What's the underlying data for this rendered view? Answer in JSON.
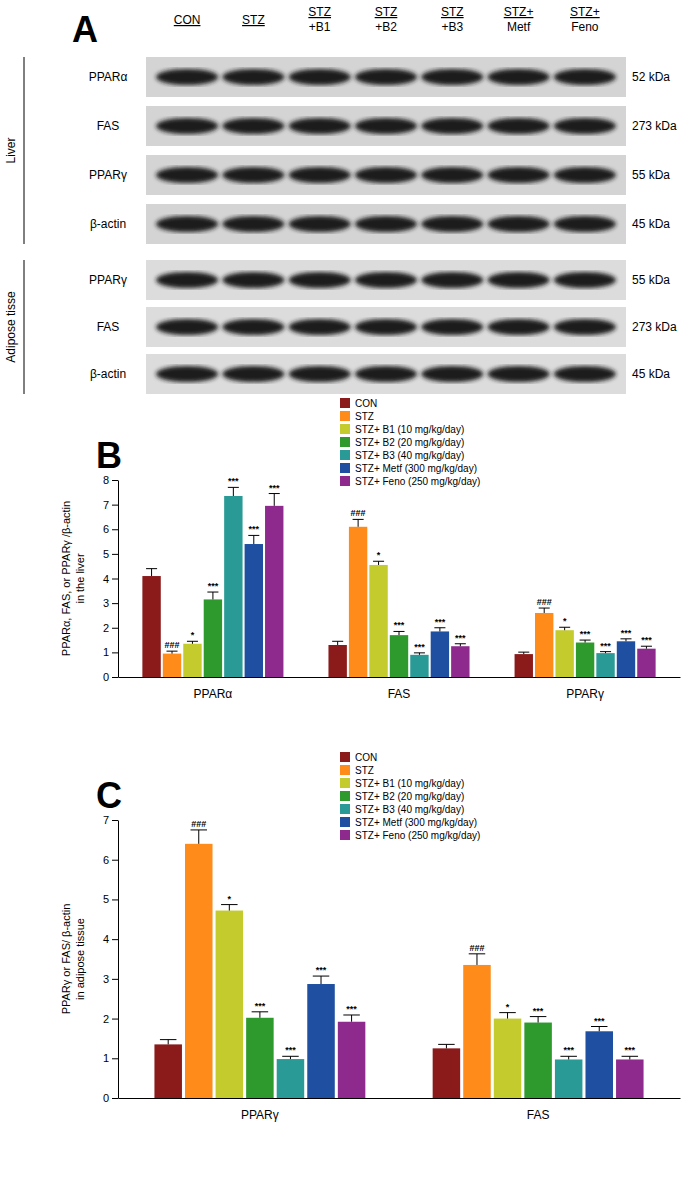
{
  "panel_a": {
    "label": "A",
    "columns": [
      [
        "CON"
      ],
      [
        "STZ"
      ],
      [
        "STZ",
        "+B1"
      ],
      [
        "STZ",
        "+B2"
      ],
      [
        "STZ",
        "+B3"
      ],
      [
        "STZ+",
        "Metf"
      ],
      [
        "STZ+",
        "Feno"
      ]
    ],
    "groups": [
      {
        "name": "Liver",
        "rows": [
          {
            "protein": "PPARα",
            "size": "52 kDa"
          },
          {
            "protein": "FAS",
            "size": "273 kDa"
          },
          {
            "protein": "PPARγ",
            "size": "55 kDa"
          },
          {
            "protein": "β-actin",
            "size": "45 kDa"
          }
        ]
      },
      {
        "name": "Adipose tisse",
        "rows": [
          {
            "protein": "PPARγ",
            "size": "55 kDa"
          },
          {
            "protein": "FAS",
            "size": "273 kDa"
          },
          {
            "protein": "β-actin",
            "size": "45 kDa"
          }
        ]
      }
    ]
  },
  "chart_data": [
    {
      "type": "bar",
      "panel_label": "B",
      "ylabel": [
        "PPARα, FAS, or PPARγ /β-actin",
        "in the liver"
      ],
      "categories": [
        "PPARα",
        "FAS",
        "PPARγ"
      ],
      "ylim": [
        0,
        8
      ],
      "yticks": [
        0,
        1,
        2,
        3,
        4,
        5,
        6,
        7,
        8
      ],
      "legend": "top",
      "series": [
        {
          "name": "CON",
          "color": "#8b1a1a",
          "values": [
            4.1,
            1.3,
            0.93
          ],
          "errors": [
            0.3,
            0.15,
            0.08
          ],
          "significance": [
            null,
            null,
            null
          ]
        },
        {
          "name": "STZ",
          "color": "#ff8c1a",
          "values": [
            0.95,
            6.1,
            2.6
          ],
          "errors": [
            0.1,
            0.3,
            0.2
          ],
          "significance": [
            "###",
            "###",
            "###"
          ]
        },
        {
          "name": "STZ+ B1 (10 mg/kg/day)",
          "color": "#c3cc2c",
          "values": [
            1.35,
            4.55,
            1.9
          ],
          "errors": [
            0.1,
            0.15,
            0.12
          ],
          "significance": [
            "*",
            "*",
            "*"
          ]
        },
        {
          "name": "STZ+ B2 (20 mg/kg/day)",
          "color": "#2e9a2e",
          "values": [
            3.15,
            1.7,
            1.4
          ],
          "errors": [
            0.3,
            0.15,
            0.1
          ],
          "significance": [
            "***",
            "***",
            "***"
          ]
        },
        {
          "name": "STZ+ B3 (40 mg/kg/day)",
          "color": "#2a9a96",
          "values": [
            7.35,
            0.9,
            0.97
          ],
          "errors": [
            0.35,
            0.08,
            0.06
          ],
          "significance": [
            "***",
            "***",
            "***"
          ]
        },
        {
          "name": "STZ+ Metf (300 mg/kg/day)",
          "color": "#1e4fa0",
          "values": [
            5.4,
            1.85,
            1.45
          ],
          "errors": [
            0.35,
            0.15,
            0.1
          ],
          "significance": [
            "***",
            "***",
            "***"
          ]
        },
        {
          "name": "STZ+ Feno (250 mg/kg/day)",
          "color": "#8e2a8e",
          "values": [
            6.95,
            1.25,
            1.15
          ],
          "errors": [
            0.5,
            0.1,
            0.1
          ],
          "significance": [
            "***",
            "***",
            "***"
          ]
        }
      ]
    },
    {
      "type": "bar",
      "panel_label": "C",
      "ylabel": [
        "PPARγ or FAS/ β-actin",
        "in adipose tissue"
      ],
      "categories": [
        "PPARγ",
        "FAS"
      ],
      "ylim": [
        0,
        7
      ],
      "yticks": [
        0,
        1,
        2,
        3,
        4,
        5,
        6,
        7
      ],
      "legend": "top",
      "series": [
        {
          "name": "CON",
          "color": "#8b1a1a",
          "values": [
            1.35,
            1.25
          ],
          "errors": [
            0.12,
            0.1
          ],
          "significance": [
            null,
            null
          ]
        },
        {
          "name": "STZ",
          "color": "#ff8c1a",
          "values": [
            6.4,
            3.35
          ],
          "errors": [
            0.35,
            0.28
          ],
          "significance": [
            "###",
            "###"
          ]
        },
        {
          "name": "STZ+ B1 (10 mg/kg/day)",
          "color": "#c3cc2c",
          "values": [
            4.72,
            2.0
          ],
          "errors": [
            0.15,
            0.15
          ],
          "significance": [
            "*",
            "*"
          ]
        },
        {
          "name": "STZ+ B2 (20 mg/kg/day)",
          "color": "#2e9a2e",
          "values": [
            2.02,
            1.9
          ],
          "errors": [
            0.15,
            0.15
          ],
          "significance": [
            "***",
            "***"
          ]
        },
        {
          "name": "STZ+ B3 (40 mg/kg/day)",
          "color": "#2a9a96",
          "values": [
            0.98,
            0.97
          ],
          "errors": [
            0.07,
            0.08
          ],
          "significance": [
            "***",
            "***"
          ]
        },
        {
          "name": "STZ+ Metf (300 mg/kg/day)",
          "color": "#1e4fa0",
          "values": [
            2.87,
            1.68
          ],
          "errors": [
            0.2,
            0.12
          ],
          "significance": [
            "***",
            "***"
          ]
        },
        {
          "name": "STZ+ Feno (250 mg/kg/day)",
          "color": "#8e2a8e",
          "values": [
            1.92,
            0.97
          ],
          "errors": [
            0.17,
            0.08
          ],
          "significance": [
            "***",
            "***"
          ]
        }
      ]
    }
  ]
}
